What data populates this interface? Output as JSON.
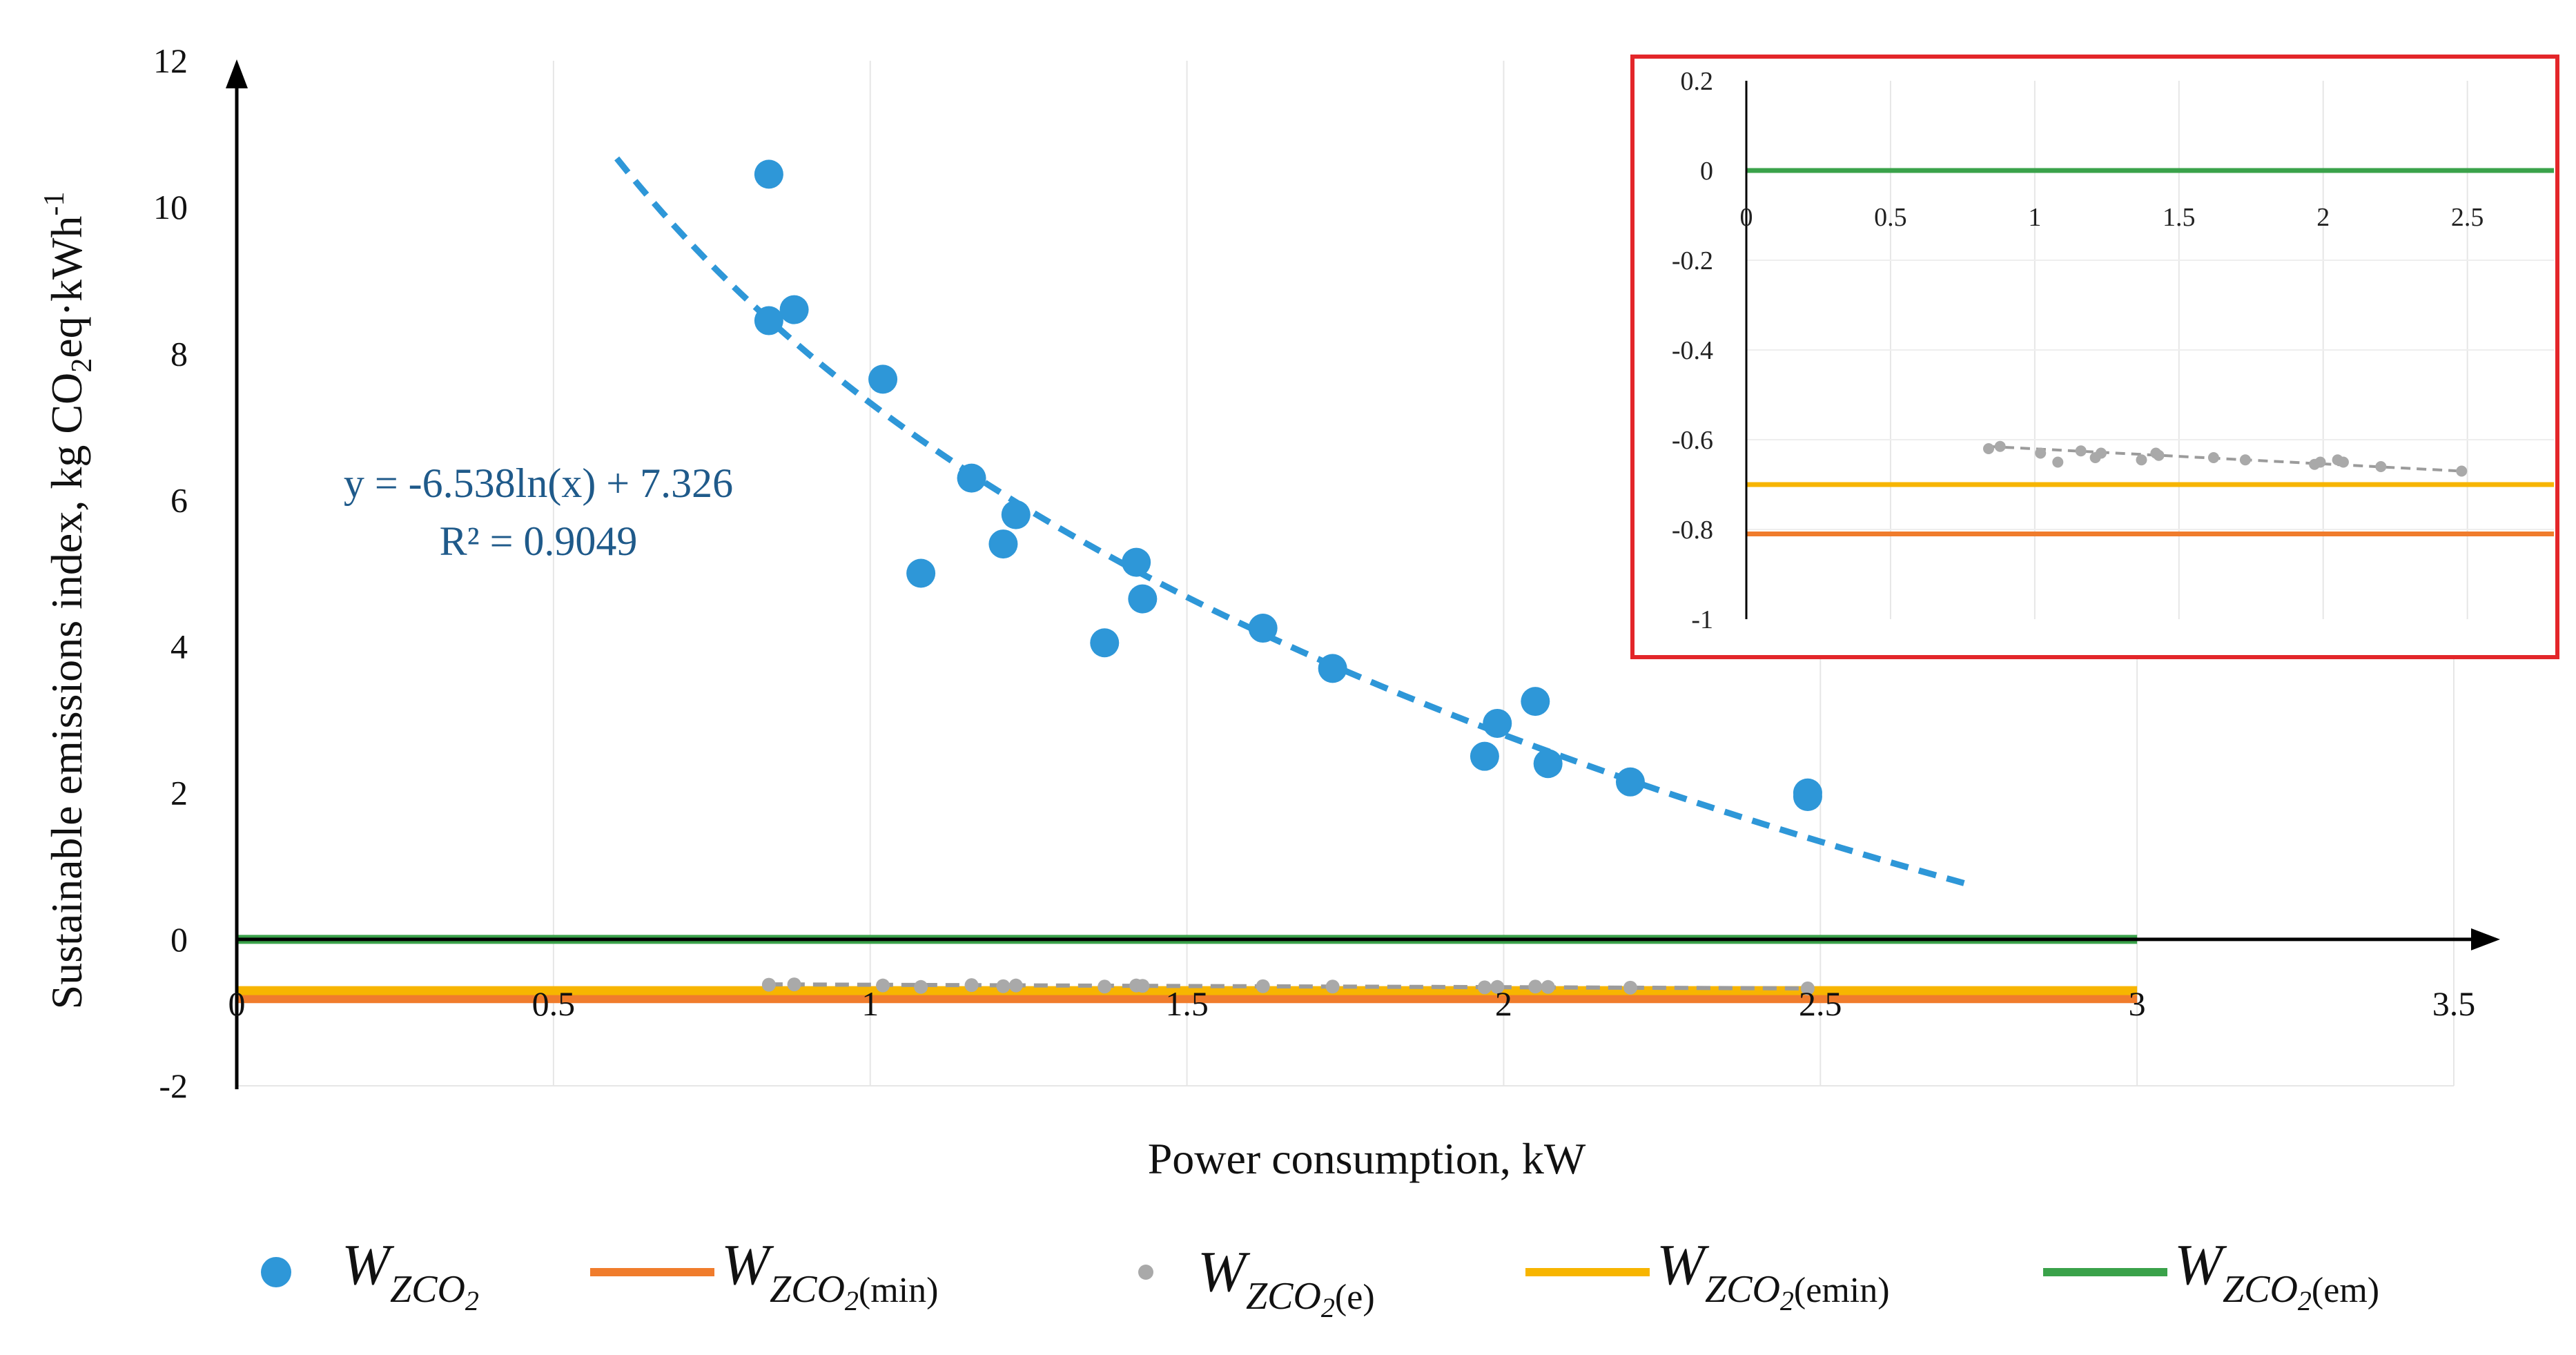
{
  "chart_data": [
    {
      "type": "scatter",
      "xlabel": "Power consumption, kW",
      "ylabel": "Sustainable emissions index, kg CO",
      "ylabel_sub": "2",
      "ylabel_tail": "eq·kWh",
      "ylabel_sup": "-1",
      "xlim": [
        0,
        3.5
      ],
      "ylim": [
        -2,
        12
      ],
      "xticks": [
        "0",
        "0.5",
        "1",
        "1.5",
        "2",
        "2.5",
        "3",
        "3.5"
      ],
      "yticks": [
        "-2",
        "0",
        "2",
        "4",
        "6",
        "8",
        "10",
        "12"
      ],
      "grid": "vertical",
      "legend_position": "bottom",
      "series": [
        {
          "legend": "W_ZCO2",
          "kind": "scatter",
          "color": "#2e97d8",
          "points": [
            [
              0.84,
              10.45
            ],
            [
              0.84,
              8.45
            ],
            [
              0.88,
              8.6
            ],
            [
              1.02,
              7.65
            ],
            [
              1.08,
              5.0
            ],
            [
              1.16,
              6.3
            ],
            [
              1.21,
              5.4
            ],
            [
              1.23,
              5.8
            ],
            [
              1.37,
              4.05
            ],
            [
              1.42,
              5.15
            ],
            [
              1.43,
              4.65
            ],
            [
              1.62,
              4.25
            ],
            [
              1.73,
              3.7
            ],
            [
              1.97,
              2.5
            ],
            [
              1.99,
              2.95
            ],
            [
              2.05,
              3.25
            ],
            [
              2.07,
              2.4
            ],
            [
              2.2,
              2.15
            ],
            [
              2.48,
              2.0
            ],
            [
              2.48,
              1.95
            ]
          ]
        },
        {
          "legend": "W_ZCO2(min)",
          "kind": "hline",
          "color": "#f07c2c",
          "value": -0.81,
          "x_range": [
            0,
            3
          ]
        },
        {
          "legend": "W_ZCO2(e)",
          "kind": "scatter",
          "color": "#a9a9a9",
          "points": [
            [
              0.84,
              -0.62
            ],
            [
              0.88,
              -0.615
            ],
            [
              1.02,
              -0.63
            ],
            [
              1.08,
              -0.65
            ],
            [
              1.16,
              -0.625
            ],
            [
              1.21,
              -0.64
            ],
            [
              1.23,
              -0.63
            ],
            [
              1.37,
              -0.645
            ],
            [
              1.42,
              -0.63
            ],
            [
              1.43,
              -0.635
            ],
            [
              1.62,
              -0.64
            ],
            [
              1.73,
              -0.645
            ],
            [
              1.97,
              -0.655
            ],
            [
              1.99,
              -0.65
            ],
            [
              2.05,
              -0.645
            ],
            [
              2.07,
              -0.65
            ],
            [
              2.2,
              -0.66
            ],
            [
              2.48,
              -0.67
            ]
          ]
        },
        {
          "legend": "W_ZCO2(emin)",
          "kind": "hline",
          "color": "#f7b500",
          "value": -0.7,
          "x_range": [
            0,
            3
          ]
        },
        {
          "legend": "W_ZCO2(em)",
          "kind": "hline",
          "color": "#3aa24a",
          "value": 0,
          "x_range": [
            0,
            3
          ]
        }
      ],
      "trendline": {
        "color": "#2e97d8",
        "form": "logarithmic",
        "a": -6.538,
        "b": 7.326,
        "x_range": [
          0.6,
          2.73
        ],
        "equation": "y = -6.538ln(x) + 7.326",
        "r2": "R² = 0.9049"
      },
      "e_trendline": {
        "color": "#9b9b9b",
        "x_range": [
          0.84,
          2.48
        ],
        "y_start": -0.615,
        "y_end": -0.67
      }
    },
    {
      "type": "scatter",
      "role": "inset",
      "border_color": "#e3262a",
      "xlim": [
        0,
        2.8
      ],
      "ylim": [
        -1,
        0.2
      ],
      "xticks": [
        "0",
        "0.5",
        "1",
        "1.5",
        "2",
        "2.5"
      ],
      "yticks": [
        "0.2",
        "0",
        "-0.2",
        "-0.4",
        "-0.6",
        "-0.8",
        "-1"
      ],
      "grid": "vertical",
      "hlines": [
        {
          "color": "#3aa24a",
          "value": 0
        },
        {
          "color": "#f7b500",
          "value": -0.7
        },
        {
          "color": "#f07c2c",
          "value": -0.81
        }
      ],
      "points_color": "#a9a9a9",
      "points": [
        [
          0.84,
          -0.62
        ],
        [
          0.88,
          -0.615
        ],
        [
          1.02,
          -0.63
        ],
        [
          1.08,
          -0.65
        ],
        [
          1.16,
          -0.625
        ],
        [
          1.21,
          -0.64
        ],
        [
          1.23,
          -0.63
        ],
        [
          1.37,
          -0.645
        ],
        [
          1.42,
          -0.63
        ],
        [
          1.43,
          -0.635
        ],
        [
          1.62,
          -0.64
        ],
        [
          1.73,
          -0.645
        ],
        [
          1.97,
          -0.655
        ],
        [
          1.99,
          -0.65
        ],
        [
          2.05,
          -0.645
        ],
        [
          2.07,
          -0.65
        ],
        [
          2.2,
          -0.66
        ],
        [
          2.48,
          -0.67
        ]
      ],
      "trend": {
        "color": "#9b9b9b",
        "x_range": [
          0.84,
          2.48
        ],
        "y_start": -0.615,
        "y_end": -0.67
      }
    }
  ],
  "legend": [
    {
      "main": "W",
      "sub": "ZCO",
      "sub2": "2",
      "paren": ""
    },
    {
      "main": "W",
      "sub": "ZCO",
      "sub2": "2",
      "paren": "(min)"
    },
    {
      "main": "W",
      "sub": "ZCO",
      "sub2": "2",
      "paren": "(e)"
    },
    {
      "main": "W",
      "sub": "ZCO",
      "sub2": "2",
      "paren": "(emin)"
    },
    {
      "main": "W",
      "sub": "ZCO",
      "sub2": "2",
      "paren": "(em)"
    }
  ]
}
